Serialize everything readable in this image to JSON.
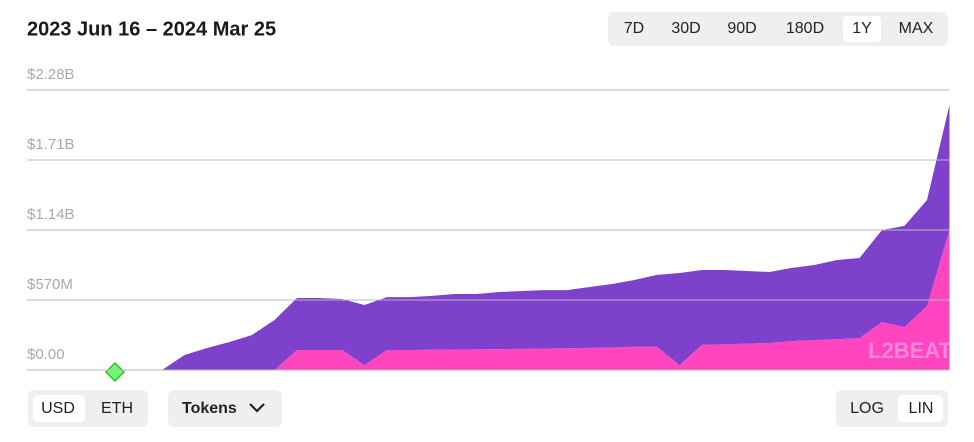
{
  "chart_data": {
    "type": "stacked-area",
    "title": "2023 Jun 16 – 2024 Mar 25",
    "watermark": "L2BEAT",
    "categories": [
      null,
      null,
      null,
      null,
      null,
      null,
      null,
      null,
      null,
      null,
      null,
      null,
      null,
      null,
      null,
      null,
      null,
      null,
      null,
      null,
      null,
      null,
      null,
      null,
      null,
      null,
      null,
      null,
      null,
      null,
      null,
      null,
      null,
      null,
      null,
      null,
      null,
      null,
      null,
      null,
      null,
      null
    ],
    "series": [
      {
        "color": "#ff46c0",
        "values": [
          0,
          0,
          0,
          0,
          0,
          0,
          0,
          0,
          0,
          0,
          0,
          0,
          163000000,
          163000000,
          163000000,
          40000000,
          163000000,
          163000000,
          165000000,
          167000000,
          168000000,
          170000000,
          172000000,
          175000000,
          177000000,
          180000000,
          183000000,
          190000000,
          190000000,
          40000000,
          204000000,
          210000000,
          215000000,
          220000000,
          235000000,
          244000000,
          250000000,
          260000000,
          390000000,
          350000000,
          520000000,
          1140000000
        ]
      },
      {
        "color": "#7e41cc",
        "values": [
          0,
          0,
          0,
          0,
          0,
          0,
          0,
          122000000,
          179000000,
          228000000,
          285000000,
          407000000,
          423000000,
          423000000,
          415000000,
          489000000,
          431000000,
          431000000,
          438000000,
          452000000,
          451000000,
          465000000,
          471000000,
          476000000,
          474000000,
          496000000,
          517000000,
          543000000,
          584000000,
          750000000,
          610000000,
          604000000,
          591000000,
          578000000,
          596000000,
          611000000,
          646000000,
          652000000,
          750000000,
          823000000,
          864000000,
          1018000000
        ]
      }
    ],
    "ylim": [
      0,
      2280000000
    ],
    "yticks": [
      {
        "value": 0,
        "label": "$0.00"
      },
      {
        "value": 570000000,
        "label": "$570M"
      },
      {
        "value": 1140000000,
        "label": "$1.14B"
      },
      {
        "value": 1710000000,
        "label": "$1.71B"
      },
      {
        "value": 2280000000,
        "label": "$2.28B"
      }
    ],
    "grid": true
  },
  "controls": {
    "time_ranges": [
      "7D",
      "30D",
      "90D",
      "180D",
      "1Y",
      "MAX"
    ],
    "units": [
      "USD",
      "ETH"
    ],
    "tokens": "Tokens",
    "scales": [
      "LOG",
      "LIN"
    ]
  }
}
